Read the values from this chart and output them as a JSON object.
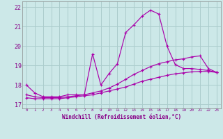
{
  "xlabel": "Windchill (Refroidissement éolien,°C)",
  "xlim": [
    -0.5,
    23.5
  ],
  "ylim": [
    16.8,
    22.3
  ],
  "yticks": [
    17,
    18,
    19,
    20,
    21,
    22
  ],
  "xticks": [
    0,
    1,
    2,
    3,
    4,
    5,
    6,
    7,
    8,
    9,
    10,
    11,
    12,
    13,
    14,
    15,
    16,
    17,
    18,
    19,
    20,
    21,
    22,
    23
  ],
  "bg_color": "#cce8e8",
  "grid_color": "#aacccc",
  "line_color": "#aa00aa",
  "lines": [
    {
      "x": [
        0,
        1,
        2,
        3,
        4,
        5,
        6,
        7,
        8,
        9,
        10,
        11,
        12,
        13,
        14,
        15,
        16,
        17,
        18,
        19,
        20,
        21,
        22,
        23
      ],
      "y": [
        18.0,
        17.6,
        17.4,
        17.4,
        17.4,
        17.5,
        17.5,
        17.5,
        19.6,
        18.0,
        18.6,
        19.1,
        20.7,
        21.1,
        21.55,
        21.85,
        21.65,
        20.0,
        19.05,
        18.85,
        18.85,
        18.8,
        18.75,
        18.65
      ]
    },
    {
      "x": [
        0,
        1,
        2,
        3,
        4,
        5,
        6,
        7,
        8,
        9,
        10,
        11,
        12,
        13,
        14,
        15,
        16,
        17,
        18,
        19,
        20,
        21,
        22,
        23
      ],
      "y": [
        17.5,
        17.4,
        17.35,
        17.35,
        17.35,
        17.4,
        17.45,
        17.5,
        17.6,
        17.7,
        17.85,
        18.05,
        18.3,
        18.55,
        18.75,
        18.95,
        19.1,
        19.2,
        19.3,
        19.35,
        19.45,
        19.5,
        18.85,
        18.65
      ]
    },
    {
      "x": [
        0,
        1,
        2,
        3,
        4,
        5,
        6,
        7,
        8,
        9,
        10,
        11,
        12,
        13,
        14,
        15,
        16,
        17,
        18,
        19,
        20,
        21,
        22,
        23
      ],
      "y": [
        17.35,
        17.3,
        17.3,
        17.3,
        17.3,
        17.35,
        17.4,
        17.45,
        17.5,
        17.6,
        17.7,
        17.8,
        17.9,
        18.05,
        18.2,
        18.3,
        18.4,
        18.5,
        18.58,
        18.63,
        18.68,
        18.7,
        18.7,
        18.65
      ]
    }
  ]
}
